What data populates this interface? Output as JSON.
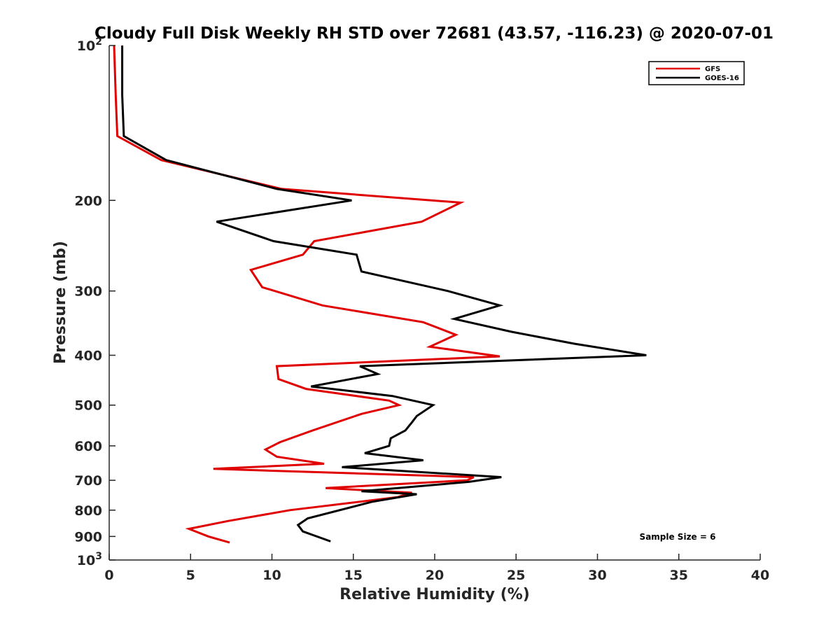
{
  "chart_data": {
    "type": "line",
    "title": "Cloudy Full Disk Weekly RH STD over 72681 (43.57, -116.23) @ 2020-07-01",
    "xlabel": "Relative Humidity (%)",
    "ylabel": "Pressure (mb)",
    "xlim": [
      0,
      40
    ],
    "ylim": [
      100,
      1000
    ],
    "y_scale": "log",
    "y_reversed": true,
    "x_ticks": [
      0,
      5,
      10,
      15,
      20,
      25,
      30,
      35,
      40
    ],
    "y_ticks": [
      {
        "value": 100,
        "base": "10",
        "exp": "2"
      },
      {
        "value": 200,
        "label": "200"
      },
      {
        "value": 300,
        "label": "300"
      },
      {
        "value": 400,
        "label": "400"
      },
      {
        "value": 500,
        "label": "500"
      },
      {
        "value": 600,
        "label": "600"
      },
      {
        "value": 700,
        "label": "700"
      },
      {
        "value": 800,
        "label": "800"
      },
      {
        "value": 900,
        "label": "900"
      },
      {
        "value": 1000,
        "base": "10",
        "exp": "3"
      }
    ],
    "grid": false,
    "legend_position": "top-right",
    "series": [
      {
        "name": "GFS",
        "color": "#e00000",
        "points": [
          [
            0.3,
            100
          ],
          [
            0.4,
            125
          ],
          [
            0.5,
            150
          ],
          [
            3.2,
            167
          ],
          [
            10.6,
            190
          ],
          [
            21.6,
            202
          ],
          [
            19.2,
            220
          ],
          [
            12.6,
            240
          ],
          [
            11.9,
            255
          ],
          [
            8.7,
            273
          ],
          [
            9.4,
            295
          ],
          [
            13.1,
            320
          ],
          [
            19.3,
            345
          ],
          [
            21.3,
            365
          ],
          [
            19.7,
            385
          ],
          [
            24.0,
            402
          ],
          [
            10.3,
            420
          ],
          [
            10.4,
            445
          ],
          [
            12.1,
            465
          ],
          [
            17.2,
            490
          ],
          [
            17.8,
            500
          ],
          [
            15.5,
            520
          ],
          [
            12.5,
            560
          ],
          [
            10.5,
            590
          ],
          [
            9.6,
            610
          ],
          [
            10.3,
            630
          ],
          [
            13.2,
            650
          ],
          [
            6.4,
            665
          ],
          [
            22.4,
            690
          ],
          [
            22.0,
            700
          ],
          [
            13.3,
            725
          ],
          [
            18.6,
            740
          ],
          [
            17.7,
            755
          ],
          [
            11.1,
            800
          ],
          [
            7.3,
            840
          ],
          [
            4.9,
            870
          ],
          [
            6.1,
            900
          ],
          [
            7.4,
            925
          ]
        ]
      },
      {
        "name": "GOES-16",
        "color": "#000000",
        "points": [
          [
            0.8,
            100
          ],
          [
            0.8,
            125
          ],
          [
            0.9,
            150
          ],
          [
            3.5,
            167
          ],
          [
            10.3,
            190
          ],
          [
            14.9,
            200
          ],
          [
            6.6,
            220
          ],
          [
            10.1,
            240
          ],
          [
            15.2,
            255
          ],
          [
            15.5,
            275
          ],
          [
            20.8,
            300
          ],
          [
            24.0,
            320
          ],
          [
            21.2,
            340
          ],
          [
            24.7,
            360
          ],
          [
            28.6,
            380
          ],
          [
            33.0,
            400
          ],
          [
            15.4,
            420
          ],
          [
            16.5,
            435
          ],
          [
            12.4,
            460
          ],
          [
            17.4,
            480
          ],
          [
            19.9,
            500
          ],
          [
            18.9,
            525
          ],
          [
            18.6,
            540
          ],
          [
            18.2,
            560
          ],
          [
            17.3,
            580
          ],
          [
            17.2,
            600
          ],
          [
            15.7,
            620
          ],
          [
            19.3,
            640
          ],
          [
            14.3,
            660
          ],
          [
            24.1,
            690
          ],
          [
            22.1,
            705
          ],
          [
            15.5,
            735
          ],
          [
            18.9,
            745
          ],
          [
            16.2,
            770
          ],
          [
            12.2,
            830
          ],
          [
            11.6,
            855
          ],
          [
            11.9,
            880
          ],
          [
            13.6,
            920
          ]
        ]
      }
    ],
    "annotations": [
      "Sample Size = 6"
    ]
  }
}
